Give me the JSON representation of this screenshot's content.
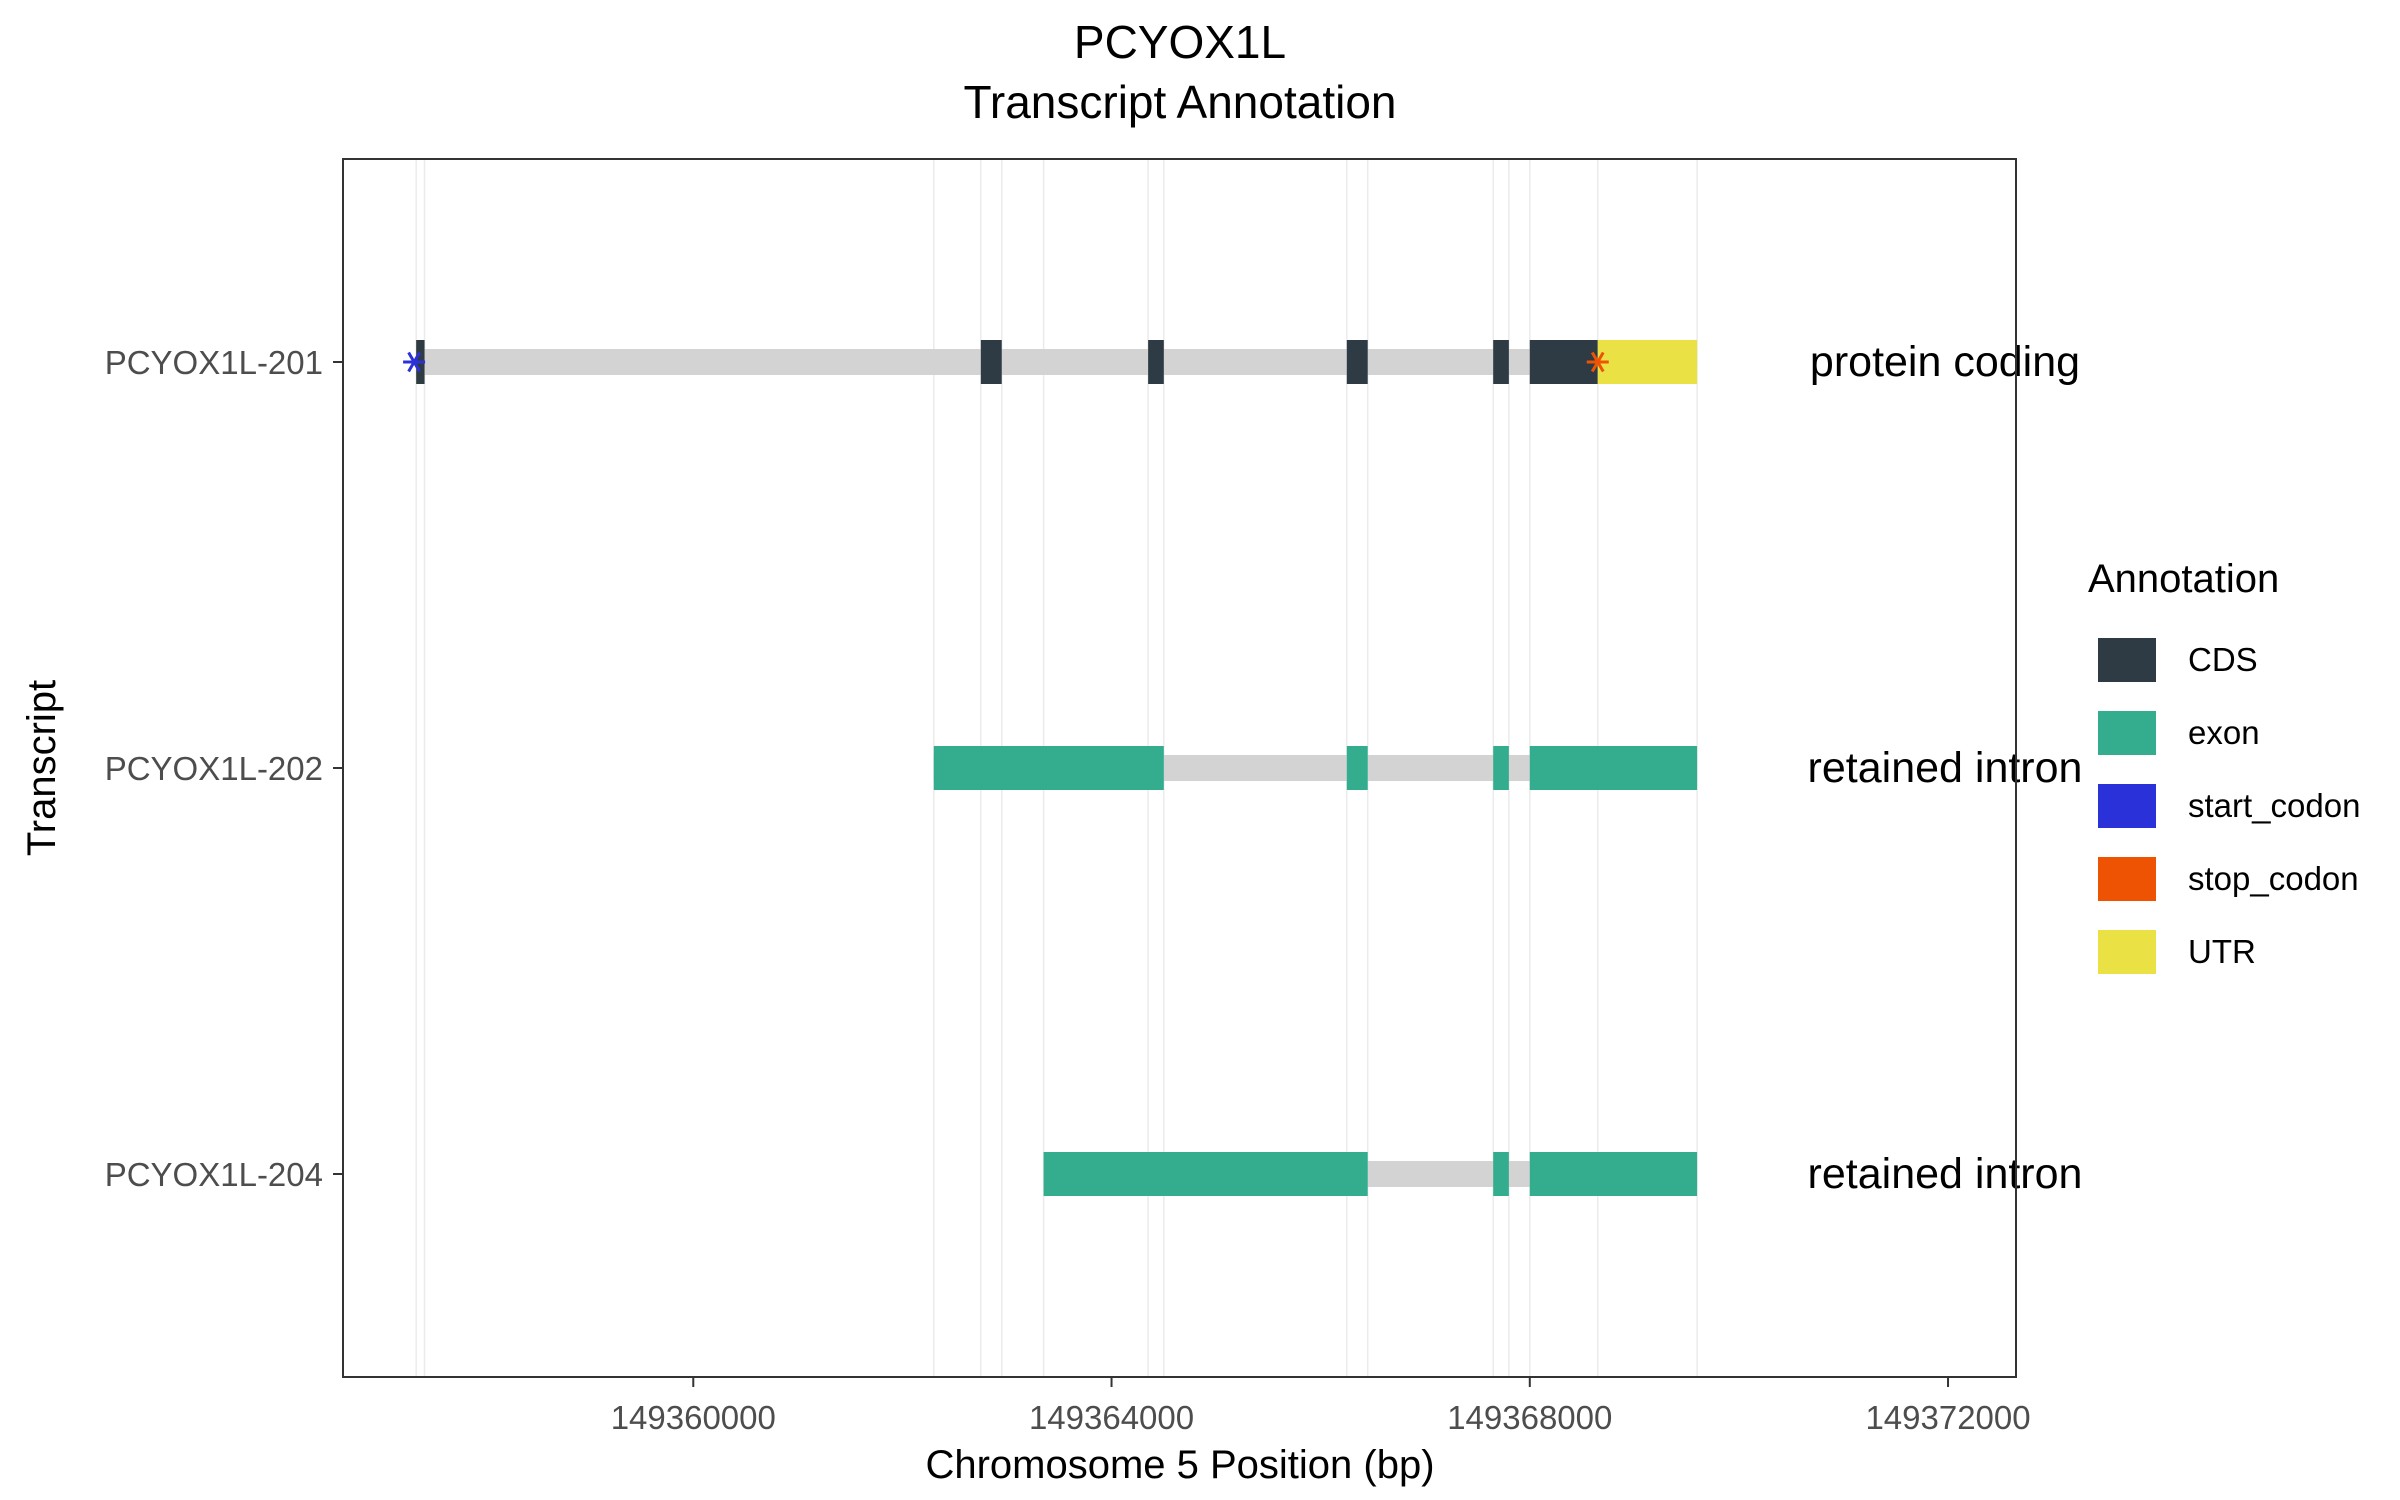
{
  "chart_data": {
    "type": "gene-track",
    "title": "PCYOX1L",
    "subtitle": "Transcript Annotation",
    "xlabel": "Chromosome 5 Position (bp)",
    "ylabel": "Transcript",
    "xlim": [
      149356650,
      149372650
    ],
    "x_ticks": [
      149360000,
      149364000,
      149368000,
      149372000
    ],
    "x_tick_labels": [
      "149360000",
      "149364000",
      "149368000",
      "149372000"
    ],
    "grid": true,
    "legend": {
      "title": "Annotation",
      "position": "right",
      "entries": [
        {
          "name": "CDS",
          "color": "#2E3B44"
        },
        {
          "name": "exon",
          "color": "#33AD8D"
        },
        {
          "name": "start_codon",
          "color": "#2B31D9"
        },
        {
          "name": "stop_codon",
          "color": "#EE5304"
        },
        {
          "name": "UTR",
          "color": "#EAE244"
        }
      ]
    },
    "intron_color": "#D3D3D3",
    "transcripts": [
      {
        "name": "PCYOX1L-204",
        "biotype": "retained intron",
        "start": 149363350,
        "end": 149369600,
        "features": [
          {
            "type": "exon",
            "start": 149363350,
            "end": 149366450
          },
          {
            "type": "exon",
            "start": 149367650,
            "end": 149367800
          },
          {
            "type": "exon",
            "start": 149368000,
            "end": 149369600
          }
        ]
      },
      {
        "name": "PCYOX1L-202",
        "biotype": "retained intron",
        "start": 149362300,
        "end": 149369600,
        "features": [
          {
            "type": "exon",
            "start": 149362300,
            "end": 149364500
          },
          {
            "type": "exon",
            "start": 149366250,
            "end": 149366450
          },
          {
            "type": "exon",
            "start": 149367650,
            "end": 149367800
          },
          {
            "type": "exon",
            "start": 149368000,
            "end": 149369600
          }
        ]
      },
      {
        "name": "PCYOX1L-201",
        "biotype": "protein coding",
        "start": 149357350,
        "end": 149369600,
        "features": [
          {
            "type": "UTR",
            "start": 149357350,
            "end": 149357430
          },
          {
            "type": "CDS",
            "start": 149357350,
            "end": 149357430
          },
          {
            "type": "CDS",
            "start": 149362750,
            "end": 149362950
          },
          {
            "type": "CDS",
            "start": 149364350,
            "end": 149364500
          },
          {
            "type": "CDS",
            "start": 149366250,
            "end": 149366450
          },
          {
            "type": "CDS",
            "start": 149367650,
            "end": 149367800
          },
          {
            "type": "CDS",
            "start": 149368000,
            "end": 149368650
          },
          {
            "type": "UTR",
            "start": 149368650,
            "end": 149369600
          }
        ],
        "start_codon": 149357330,
        "stop_codon": 149368650
      }
    ]
  }
}
